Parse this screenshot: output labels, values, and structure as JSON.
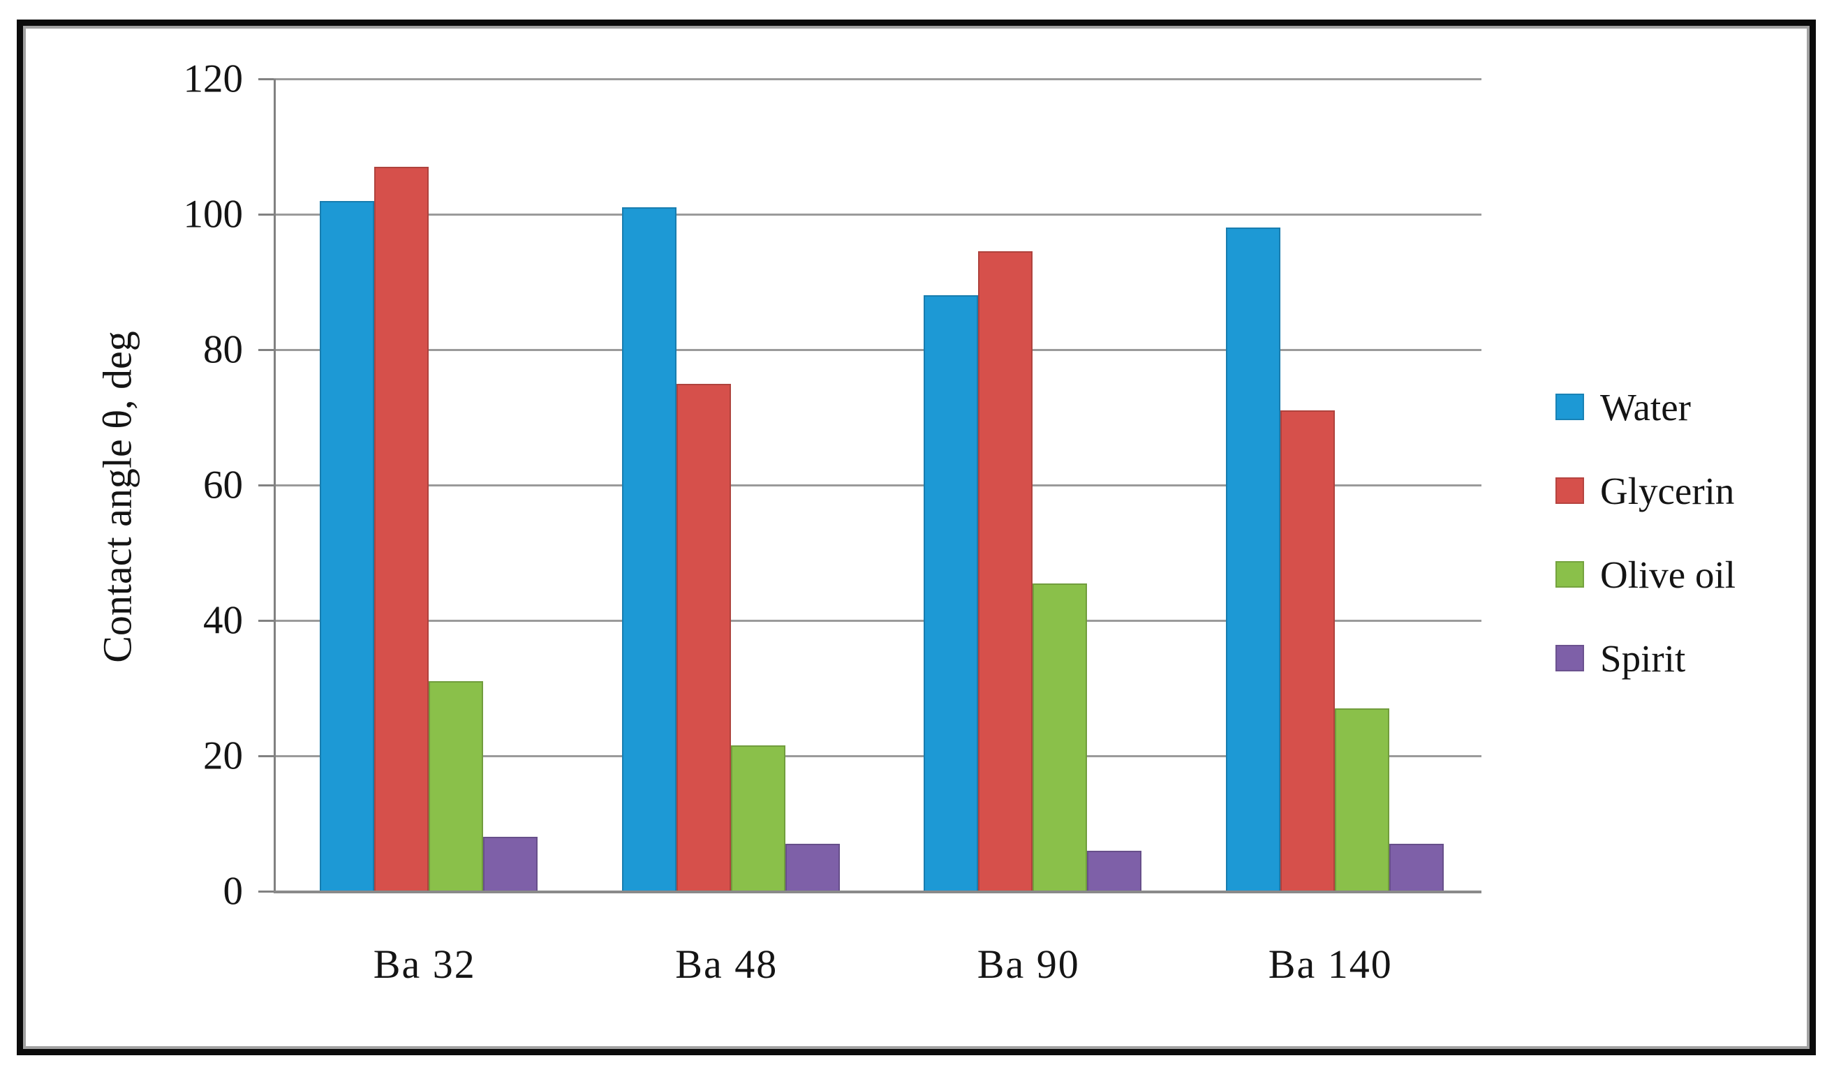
{
  "chart_data": {
    "type": "bar",
    "title": "",
    "categories": [
      "Ba 32",
      "Ba 48",
      "Ba 90",
      "Ba 140"
    ],
    "series": [
      {
        "name": "Water",
        "color": "#1d99d5",
        "values": [
          102,
          101,
          88,
          98
        ]
      },
      {
        "name": "Glycerin",
        "color": "#d6504b",
        "values": [
          107,
          75,
          94.5,
          71
        ]
      },
      {
        "name": "Olive oil",
        "color": "#8ac04a",
        "values": [
          31,
          21.5,
          45.5,
          27
        ]
      },
      {
        "name": "Spirit",
        "color": "#7e60a8",
        "values": [
          8,
          7,
          6,
          7
        ]
      }
    ],
    "xlabel": "",
    "ylabel": "Contact angle θ, deg",
    "ylim": [
      0,
      120
    ],
    "yticks": [
      0,
      20,
      40,
      60,
      80,
      100,
      120
    ],
    "grid": true,
    "legend_position": "right"
  },
  "colors": {
    "background": "#ffffff",
    "frame_outer": "#0b0b0b",
    "frame_inner_line": "#a2a2a2",
    "gridline": "#9a9a9a",
    "axis": "#818181",
    "text": "#141414"
  }
}
